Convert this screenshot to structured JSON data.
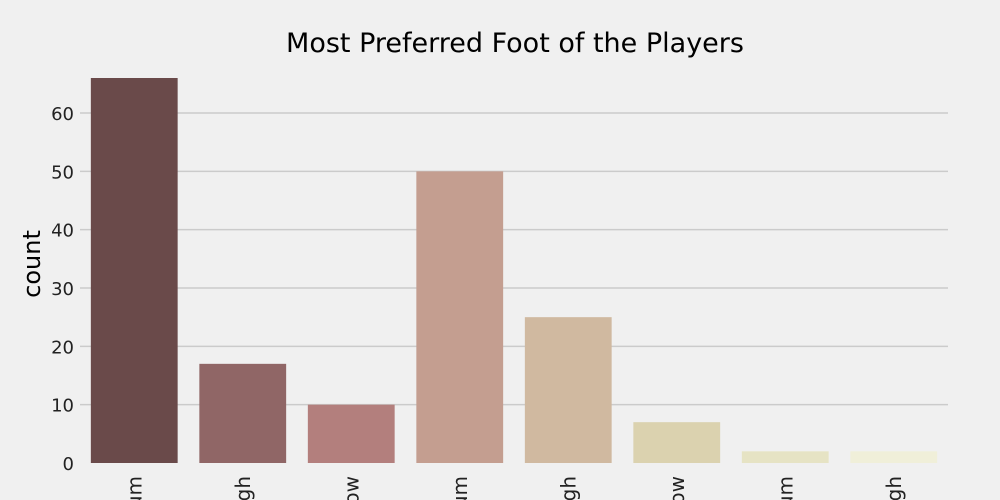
{
  "chart_data": {
    "type": "bar",
    "title": "Most Preferred Foot of the Players",
    "xlabel": "",
    "ylabel": "count",
    "ylim": [
      0,
      66
    ],
    "yticks": [
      0,
      10,
      20,
      30,
      40,
      50,
      60
    ],
    "grid": true,
    "categories": [
      "um",
      "igh",
      "ow",
      "um",
      "igh",
      "ow",
      "um",
      "igh"
    ],
    "values": [
      66,
      17,
      10,
      50,
      25,
      7,
      2,
      2
    ],
    "colors": [
      "#6a4a4a",
      "#906666",
      "#b37f7d",
      "#c49e90",
      "#d0b9a0",
      "#dbd2af",
      "#e6e3c4",
      "#f0efd9"
    ]
  }
}
